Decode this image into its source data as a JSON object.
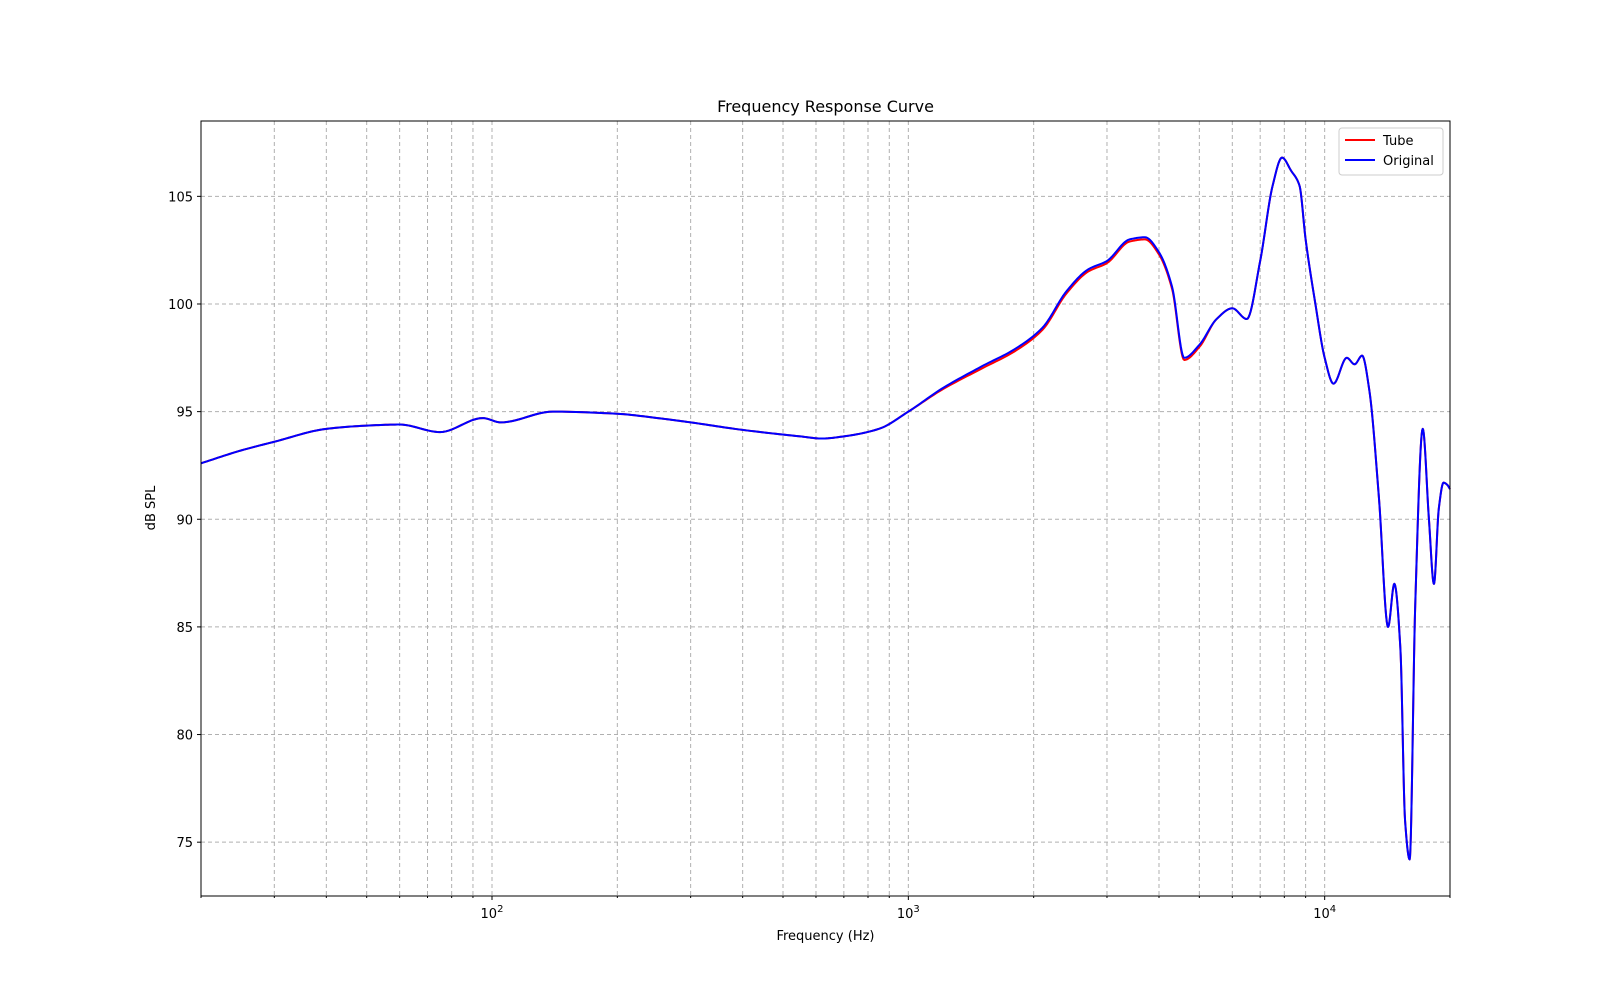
{
  "chart_data": {
    "type": "line",
    "title": "Frequency Response Curve",
    "xlabel": "Frequency (Hz)",
    "ylabel": "dB SPL",
    "xscale": "log",
    "xlim": [
      20,
      20000
    ],
    "ylim": [
      72.5,
      108.5
    ],
    "xticks": [
      {
        "value": 100,
        "base": "10",
        "exp": "2"
      },
      {
        "value": 1000,
        "base": "10",
        "exp": "3"
      },
      {
        "value": 10000,
        "base": "10",
        "exp": "4"
      }
    ],
    "yticks": [
      75,
      80,
      85,
      90,
      95,
      100,
      105
    ],
    "grid": true,
    "legend_position": "top-right",
    "series": [
      {
        "name": "Tube",
        "color": "#ff0000",
        "x": [
          20,
          25,
          30,
          40,
          50,
          60,
          75,
          95,
          105,
          140,
          200,
          250,
          300,
          400,
          550,
          620,
          700,
          850,
          1000,
          1200,
          1500,
          1800,
          2100,
          2400,
          2700,
          3000,
          3400,
          3700,
          4000,
          4300,
          4600,
          5000,
          5500,
          6000,
          6500,
          7000,
          7500,
          7900,
          8300,
          8700,
          9000,
          9500,
          10000,
          10500,
          11300,
          11800,
          12300,
          12800,
          13500,
          14200,
          14700,
          15200,
          15600,
          16000,
          16500,
          17200,
          17800,
          18300,
          18800,
          19300,
          19700,
          20000
        ],
        "values": [
          92.6,
          93.2,
          93.6,
          94.2,
          94.35,
          94.4,
          94.05,
          94.7,
          94.5,
          95.0,
          94.9,
          94.7,
          94.5,
          94.15,
          93.85,
          93.75,
          93.85,
          94.2,
          95.0,
          96.0,
          97.0,
          97.8,
          98.8,
          100.5,
          101.5,
          101.9,
          102.9,
          103.0,
          102.3,
          100.7,
          97.4,
          98.0,
          99.3,
          99.8,
          99.3,
          102.0,
          105.5,
          106.8,
          106.2,
          105.5,
          103.0,
          100.0,
          97.5,
          96.3,
          97.5,
          97.2,
          97.6,
          96.0,
          91.0,
          85.0,
          87.0,
          84.0,
          76.0,
          74.2,
          86.0,
          94.2,
          90.0,
          87.0,
          90.5,
          91.7,
          91.6,
          91.4
        ]
      },
      {
        "name": "Original",
        "color": "#0000ff",
        "x": [
          20,
          25,
          30,
          40,
          50,
          60,
          75,
          95,
          105,
          140,
          200,
          250,
          300,
          400,
          550,
          620,
          700,
          850,
          1000,
          1200,
          1500,
          1800,
          2100,
          2400,
          2700,
          3000,
          3400,
          3700,
          4000,
          4300,
          4600,
          5000,
          5500,
          6000,
          6500,
          7000,
          7500,
          7900,
          8300,
          8700,
          9000,
          9500,
          10000,
          10500,
          11300,
          11800,
          12300,
          12800,
          13500,
          14200,
          14700,
          15200,
          15600,
          16000,
          16500,
          17200,
          17800,
          18300,
          18800,
          19300,
          19700,
          20000
        ],
        "values": [
          92.6,
          93.2,
          93.6,
          94.2,
          94.35,
          94.4,
          94.05,
          94.7,
          94.5,
          95.0,
          94.9,
          94.7,
          94.5,
          94.15,
          93.85,
          93.75,
          93.85,
          94.2,
          95.0,
          96.05,
          97.1,
          97.9,
          98.9,
          100.6,
          101.6,
          102.0,
          103.0,
          103.1,
          102.4,
          100.8,
          97.5,
          98.1,
          99.3,
          99.8,
          99.3,
          102.0,
          105.5,
          106.8,
          106.2,
          105.5,
          103.0,
          100.0,
          97.5,
          96.3,
          97.5,
          97.2,
          97.6,
          96.0,
          91.0,
          85.0,
          87.0,
          84.0,
          76.0,
          74.2,
          86.0,
          94.2,
          90.0,
          87.0,
          90.5,
          91.7,
          91.6,
          91.4
        ]
      }
    ]
  }
}
